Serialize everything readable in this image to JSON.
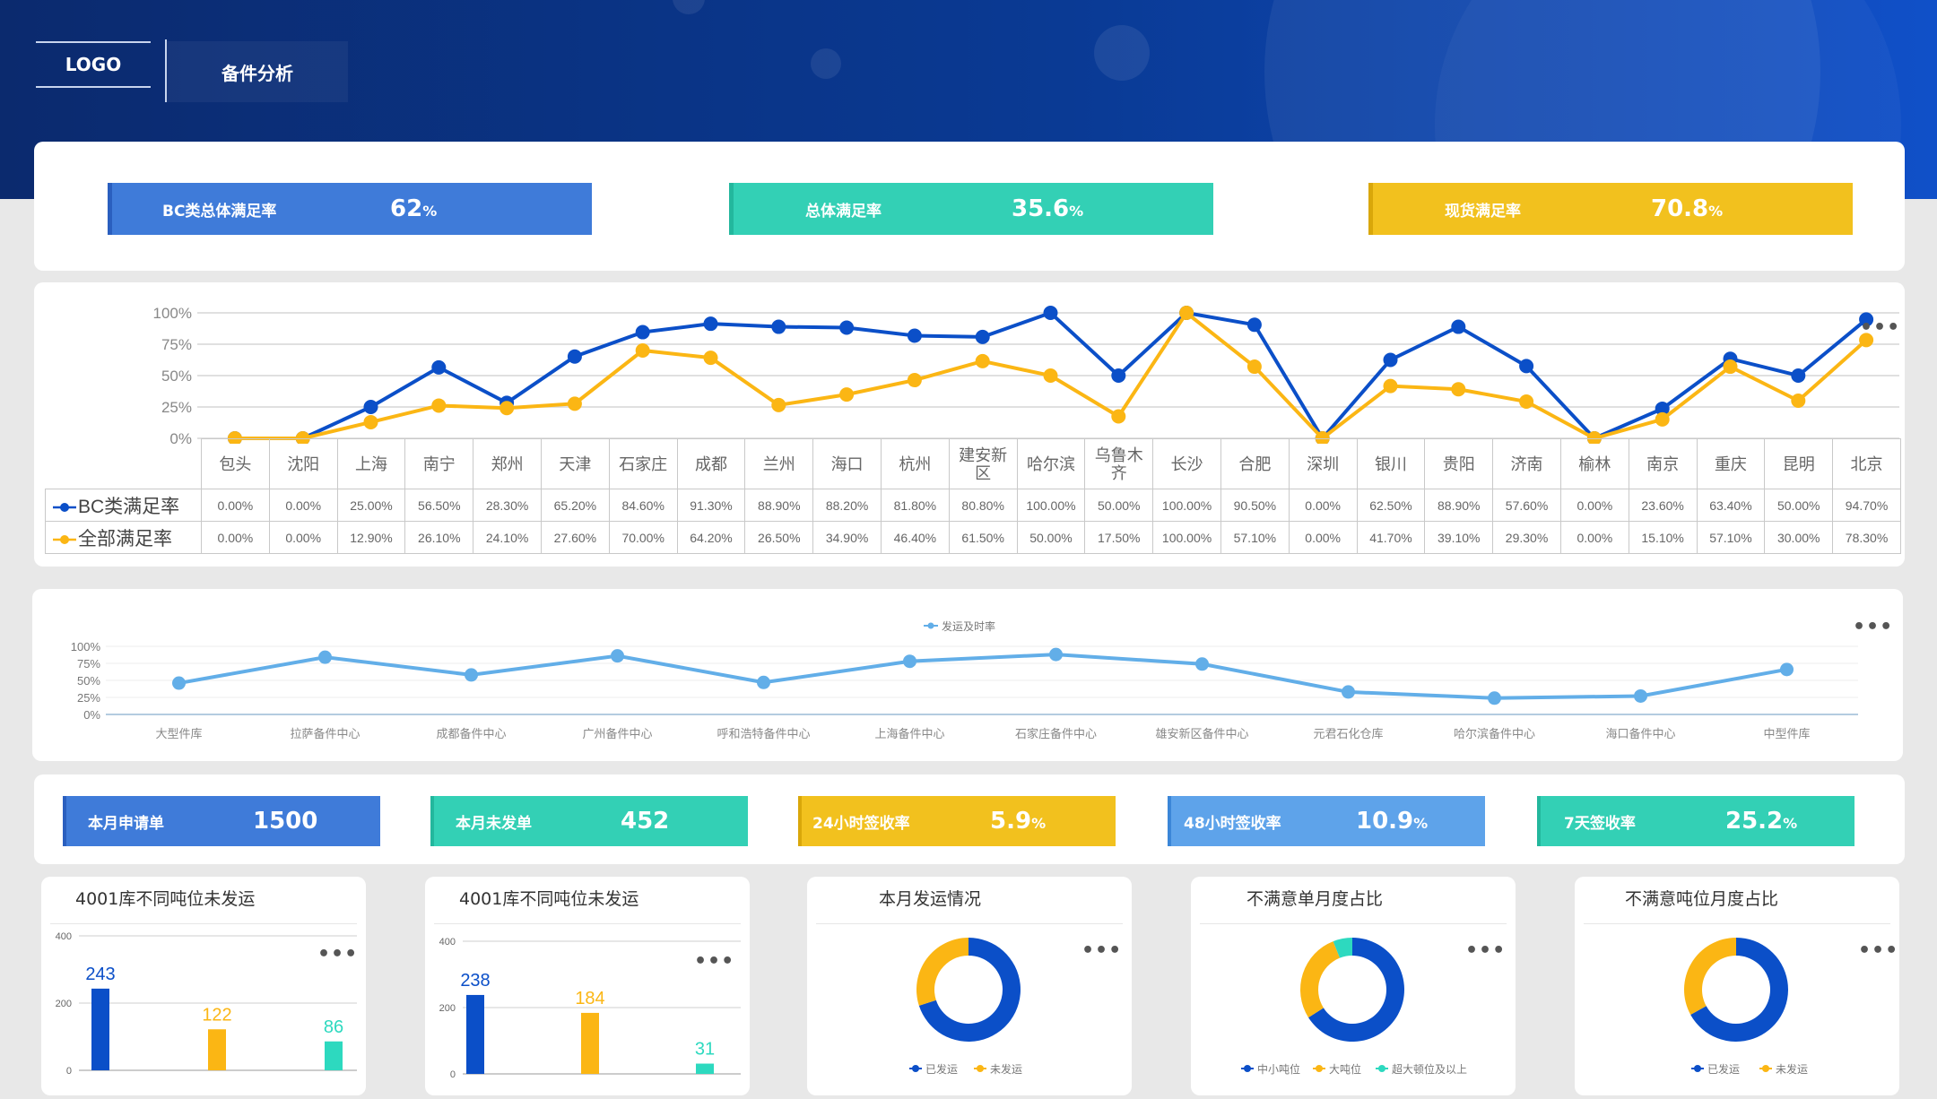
{
  "header": {
    "logo": "LOGO",
    "title": "备件分析"
  },
  "top_kpis": [
    {
      "label": "BC类总体满足率",
      "value": "62",
      "unit": "%",
      "color": "#3f7bd9"
    },
    {
      "label": "总体满足率",
      "value": "35.6",
      "unit": "%",
      "color": "#33d0b5"
    },
    {
      "label": "现货满足率",
      "value": "70.8",
      "unit": "%",
      "color": "#f2c11e"
    }
  ],
  "chart_data": [
    {
      "type": "line",
      "yticks": [
        "100%",
        "75%",
        "50%",
        "25%",
        "0%"
      ],
      "ylim": [
        0,
        100
      ],
      "categories": [
        "包头",
        "沈阳",
        "上海",
        "南宁",
        "郑州",
        "天津",
        "石家庄",
        "成都",
        "兰州",
        "海口",
        "杭州",
        "建安新区",
        "哈尔滨",
        "乌鲁木齐",
        "长沙",
        "合肥",
        "深圳",
        "银川",
        "贵阳",
        "济南",
        "榆林",
        "南京",
        "重庆",
        "昆明",
        "北京"
      ],
      "series": [
        {
          "name": "BC类满足率",
          "color": "#0b4fc8",
          "values": [
            0,
            0,
            25,
            56.5,
            28.3,
            65.2,
            84.6,
            91.3,
            88.9,
            88.2,
            81.8,
            80.8,
            100,
            50,
            100,
            90.5,
            0,
            62.5,
            88.9,
            57.6,
            0,
            23.6,
            63.4,
            50,
            94.7
          ],
          "labels": [
            "0.00%",
            "0.00%",
            "25.00%",
            "56.50%",
            "28.30%",
            "65.20%",
            "84.60%",
            "91.30%",
            "88.90%",
            "88.20%",
            "81.80%",
            "80.80%",
            "100.00%",
            "50.00%",
            "100.00%",
            "90.50%",
            "0.00%",
            "62.50%",
            "88.90%",
            "57.60%",
            "0.00%",
            "23.60%",
            "63.40%",
            "50.00%",
            "94.70%"
          ]
        },
        {
          "name": "全部满足率",
          "color": "#fbb614",
          "values": [
            0,
            0,
            12.9,
            26.1,
            24.1,
            27.6,
            70,
            64.2,
            26.5,
            34.9,
            46.4,
            61.5,
            50,
            17.5,
            100,
            57.1,
            0,
            41.7,
            39.1,
            29.3,
            0,
            15.1,
            57.1,
            30,
            78.3
          ],
          "labels": [
            "0.00%",
            "0.00%",
            "12.90%",
            "26.10%",
            "24.10%",
            "27.60%",
            "70.00%",
            "64.20%",
            "26.50%",
            "34.90%",
            "46.40%",
            "61.50%",
            "50.00%",
            "17.50%",
            "100.00%",
            "57.10%",
            "0.00%",
            "41.70%",
            "39.10%",
            "29.30%",
            "0.00%",
            "15.10%",
            "57.10%",
            "30.00%",
            "78.30%"
          ]
        }
      ],
      "more": "•••"
    },
    {
      "type": "line",
      "legend": "发运及时率",
      "yticks": [
        "100%",
        "75%",
        "50%",
        "25%",
        "0%"
      ],
      "ylim": [
        0,
        100
      ],
      "categories": [
        "大型件库",
        "拉萨备件中心",
        "成都备件中心",
        "广州备件中心",
        "呼和浩特备件中心",
        "上海备件中心",
        "石家庄备件中心",
        "雄安新区备件中心",
        "元君石化仓库",
        "哈尔滨备件中心",
        "海口备件中心",
        "中型件库"
      ],
      "series": [
        {
          "name": "发运及时率",
          "color": "#62aee8",
          "values": [
            46,
            84,
            58,
            86,
            47,
            78,
            88,
            74,
            33,
            24,
            27,
            66
          ]
        }
      ],
      "more": "•••"
    },
    {
      "type": "bar",
      "title": "4001库不同吨位未发运",
      "yticks": [
        "400",
        "200",
        "0"
      ],
      "ylim": [
        0,
        400
      ],
      "values": [
        243,
        122,
        86
      ],
      "value_labels": [
        "243",
        "122",
        "86"
      ],
      "colors": [
        "#0b4fc8",
        "#fbb614",
        "#2dd9bf"
      ],
      "more": "•••"
    },
    {
      "type": "bar",
      "title": "4001库不同吨位未发运",
      "yticks": [
        "400",
        "200",
        "0"
      ],
      "ylim": [
        0,
        400
      ],
      "values": [
        238,
        184,
        31
      ],
      "value_labels": [
        "238",
        "184",
        "31"
      ],
      "colors": [
        "#0b4fc8",
        "#fbb614",
        "#2dd9bf"
      ],
      "more": "•••"
    },
    {
      "type": "pie",
      "title": "本月发运情况",
      "slices": [
        {
          "name": "已发运",
          "value": 70,
          "color": "#0b4fc8"
        },
        {
          "name": "未发运",
          "value": 30,
          "color": "#fbb614"
        }
      ],
      "more": "•••"
    },
    {
      "type": "pie",
      "title": "不满意单月度占比",
      "slices": [
        {
          "name": "中小吨位",
          "value": 66,
          "color": "#0b4fc8"
        },
        {
          "name": "大吨位",
          "value": 28,
          "color": "#fbb614"
        },
        {
          "name": "超大顿位及以上",
          "value": 6,
          "color": "#2dd9bf"
        }
      ],
      "more": "•••"
    },
    {
      "type": "pie",
      "title": "不满意吨位月度占比",
      "slices": [
        {
          "name": "已发运",
          "value": 67,
          "color": "#0b4fc8"
        },
        {
          "name": "未发运",
          "value": 33,
          "color": "#fbb614"
        }
      ],
      "more": "•••"
    }
  ],
  "mid_kpis": [
    {
      "label": "本月申请单",
      "value": "1500",
      "unit": "",
      "color": "#3f7bd9"
    },
    {
      "label": "本月未发单",
      "value": "452",
      "unit": "",
      "color": "#33d0b5"
    },
    {
      "label": "24小时签收率",
      "value": "5.9",
      "unit": "%",
      "color": "#f2c11e"
    },
    {
      "label": "48小时签收率",
      "value": "10.9",
      "unit": "%",
      "color": "#5ea3ea"
    },
    {
      "label": "7天签收率",
      "value": "25.2",
      "unit": "%",
      "color": "#33d0b5"
    }
  ]
}
